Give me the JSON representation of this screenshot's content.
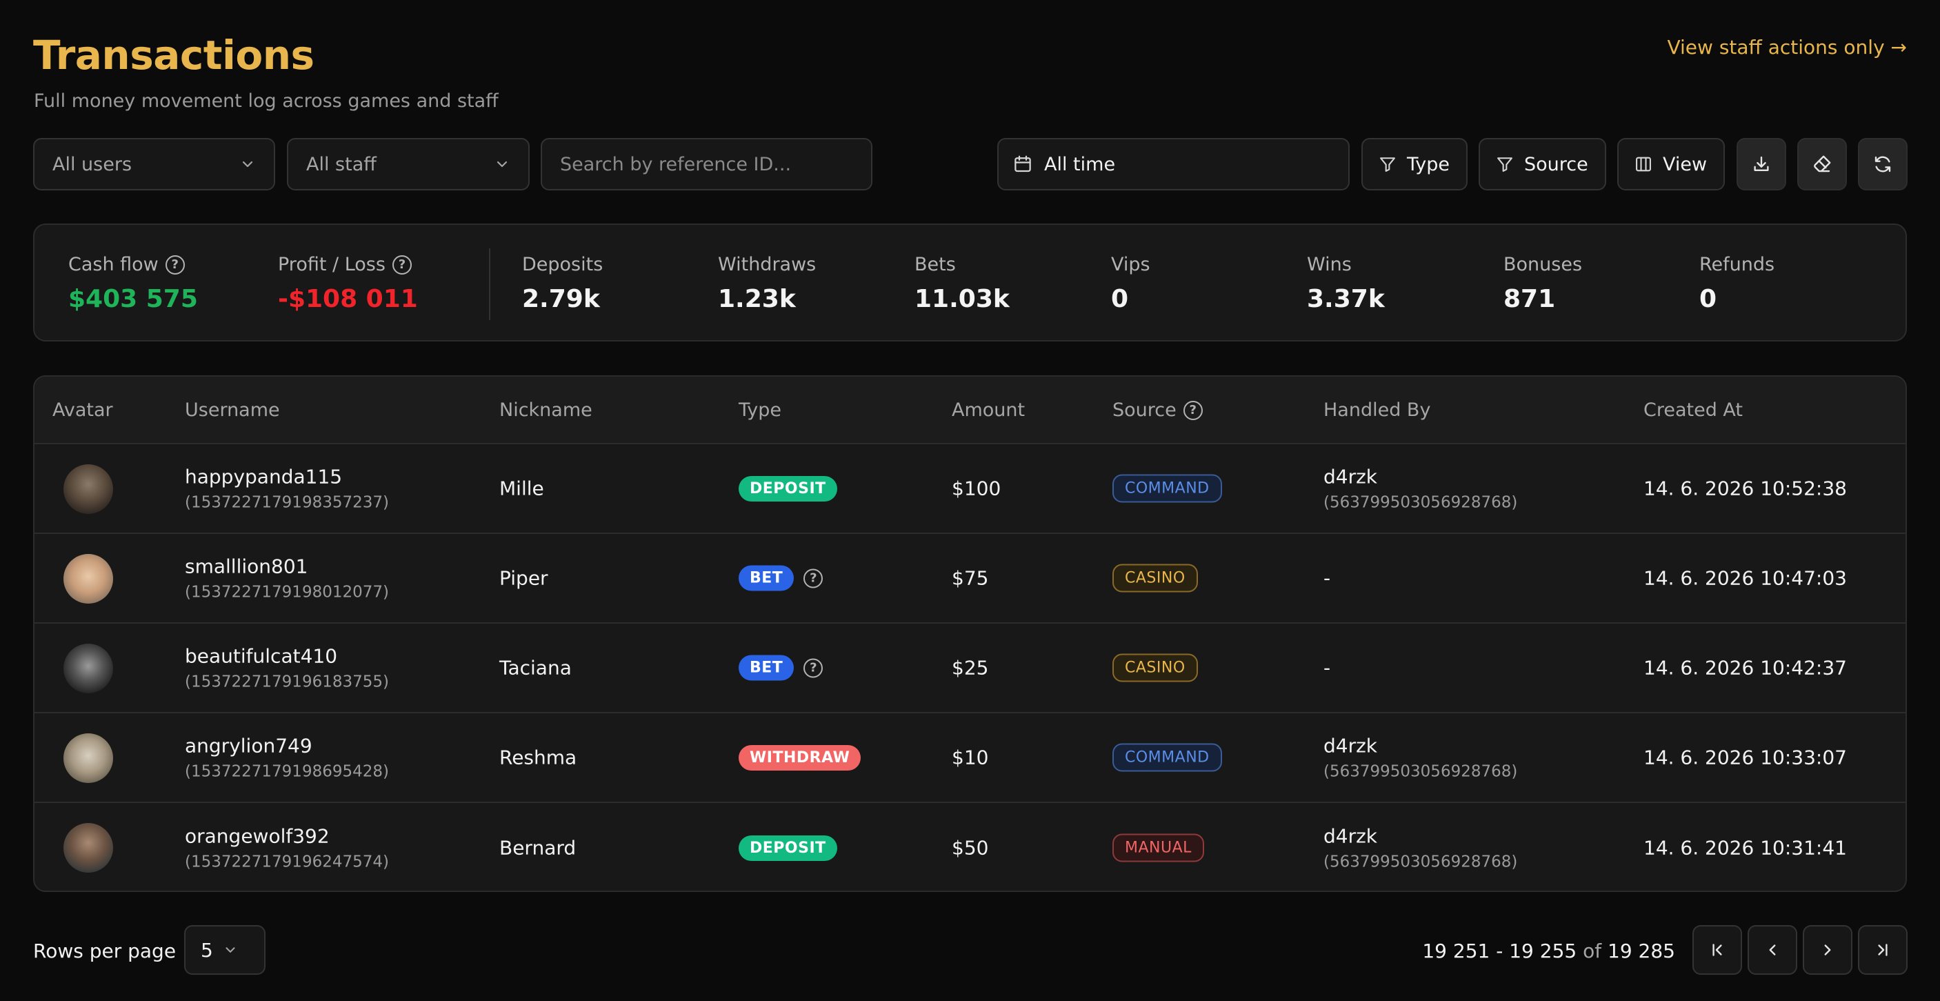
{
  "header": {
    "title": "Transactions",
    "subtitle": "Full money movement log across games and staff",
    "staff_link": "View staff actions only →"
  },
  "filters": {
    "users": "All users",
    "staff": "All staff",
    "search_placeholder": "Search by reference ID...",
    "date": "All time",
    "type_label": "Type",
    "source_label": "Source",
    "view_label": "View"
  },
  "stats": {
    "cash_flow": {
      "label": "Cash flow",
      "value": "$403 575"
    },
    "profit_loss": {
      "label": "Profit / Loss",
      "value": "-$108 011"
    },
    "items": [
      {
        "label": "Deposits",
        "value": "2.79k"
      },
      {
        "label": "Withdraws",
        "value": "1.23k"
      },
      {
        "label": "Bets",
        "value": "11.03k"
      },
      {
        "label": "Vips",
        "value": "0"
      },
      {
        "label": "Wins",
        "value": "3.37k"
      },
      {
        "label": "Bonuses",
        "value": "871"
      },
      {
        "label": "Refunds",
        "value": "0"
      }
    ]
  },
  "table": {
    "columns": [
      "Avatar",
      "Username",
      "Nickname",
      "Type",
      "Amount",
      "Source",
      "Handled By",
      "Created At"
    ],
    "rows": [
      {
        "username": "happypanda115",
        "user_id": "(1537227179198357237)",
        "nickname": "Mille",
        "type": "DEPOSIT",
        "amount": "$100",
        "source": "COMMAND",
        "handled_by": "d4rzk",
        "handler_id": "(563799503056928768)",
        "created_at": "14. 6. 2026 10:52:38"
      },
      {
        "username": "smalllion801",
        "user_id": "(1537227179198012077)",
        "nickname": "Piper",
        "type": "BET",
        "amount": "$75",
        "source": "CASINO",
        "handled_by": "-",
        "handler_id": "",
        "created_at": "14. 6. 2026 10:47:03"
      },
      {
        "username": "beautifulcat410",
        "user_id": "(1537227179196183755)",
        "nickname": "Taciana",
        "type": "BET",
        "amount": "$25",
        "source": "CASINO",
        "handled_by": "-",
        "handler_id": "",
        "created_at": "14. 6. 2026 10:42:37"
      },
      {
        "username": "angrylion749",
        "user_id": "(1537227179198695428)",
        "nickname": "Reshma",
        "type": "WITHDRAW",
        "amount": "$10",
        "source": "COMMAND",
        "handled_by": "d4rzk",
        "handler_id": "(563799503056928768)",
        "created_at": "14. 6. 2026 10:33:07"
      },
      {
        "username": "orangewolf392",
        "user_id": "(1537227179196247574)",
        "nickname": "Bernard",
        "type": "DEPOSIT",
        "amount": "$50",
        "source": "MANUAL",
        "handled_by": "d4rzk",
        "handler_id": "(563799503056928768)",
        "created_at": "14. 6. 2026 10:31:41"
      }
    ]
  },
  "pagination": {
    "rows_per_page_label": "Rows per page",
    "rows_per_page": "5",
    "range": "19 251 - 19 255",
    "of": "of",
    "total": "19 285"
  },
  "colors": {
    "accent": "#e8b64c",
    "deposit": "#12b981",
    "bet": "#2a63e6",
    "withdraw": "#f26565",
    "command": "#5b8ee6",
    "casino": "#e8b64c",
    "manual": "#f26565",
    "profit_positive": "#1fb45a",
    "profit_negative": "#f0242a"
  },
  "icons": {
    "dropdown": "chevron-down-icon",
    "date": "calendar-icon",
    "type": "filter-icon",
    "source": "filter-icon",
    "view": "columns-icon",
    "download": "download-icon",
    "clear": "eraser-icon",
    "refresh": "refresh-icon",
    "help": "question-circle-icon"
  }
}
